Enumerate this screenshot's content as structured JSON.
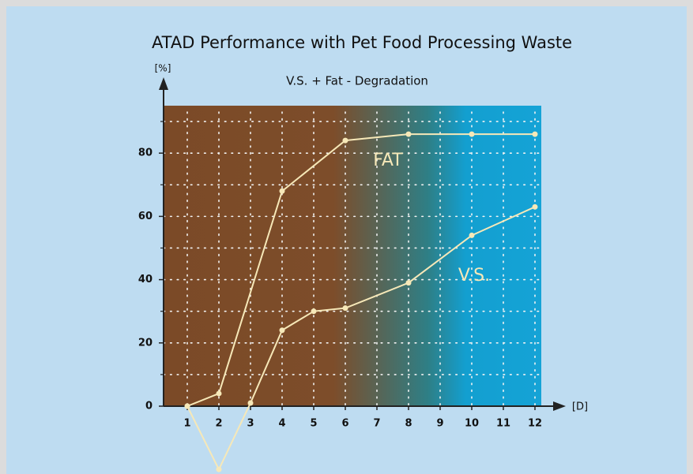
{
  "chart_data": {
    "type": "line",
    "title": "ATAD Performance with Pet Food Processing Waste",
    "subtitle": "V.S. + Fat - Degradation",
    "y_label": "[%]",
    "x_label": "[D]",
    "series": [
      {
        "name": "FAT",
        "color": "#f6e8b8",
        "x": [
          1,
          2,
          4,
          6,
          8,
          10,
          12
        ],
        "values": [
          0,
          4,
          68,
          84,
          86,
          86,
          86
        ]
      },
      {
        "name": "V.S.",
        "color": "#f6e8b8",
        "x": [
          1,
          2,
          3,
          4,
          5,
          6,
          8,
          10,
          12
        ],
        "values": [
          0,
          -20,
          1,
          24,
          30,
          31,
          39,
          54,
          63
        ]
      }
    ],
    "xlim": [
      0.25,
      12.2
    ],
    "ylim": [
      0,
      95
    ],
    "xticks": [
      1,
      2,
      3,
      4,
      5,
      6,
      7,
      8,
      9,
      10,
      11,
      12
    ],
    "yticks": [
      0,
      20,
      40,
      60,
      80
    ],
    "minor_yticks": [
      10,
      30,
      50,
      70,
      90
    ],
    "grid": true
  }
}
